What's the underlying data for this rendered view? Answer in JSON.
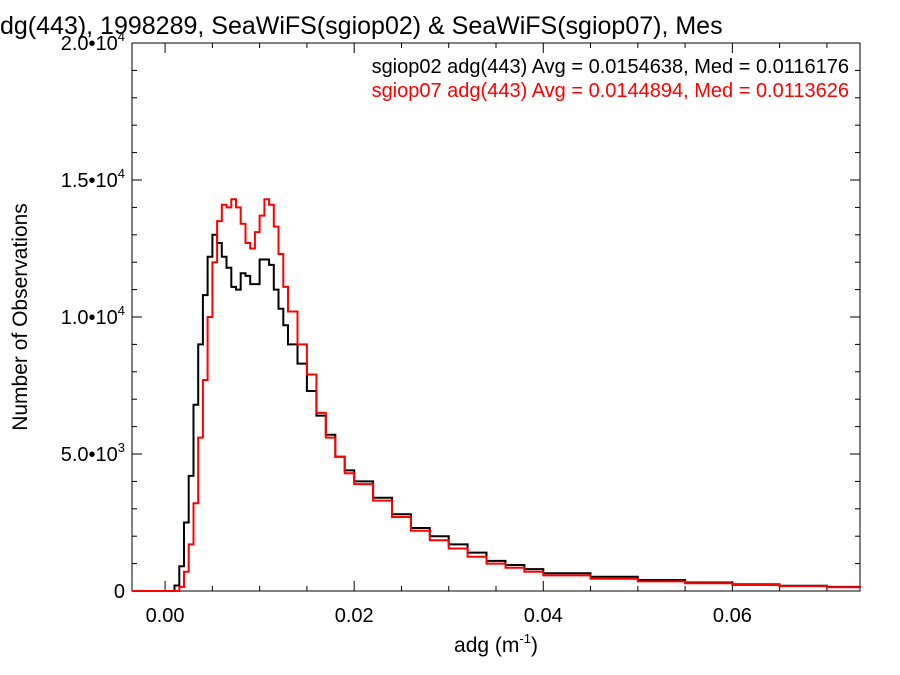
{
  "chart_data": {
    "type": "line",
    "title": "dg(443), 1998289, SeaWiFS(sgiop02) & SeaWiFS(sgiop07), Mes",
    "xlabel": "adg (m",
    "xlabel_sup": "-1",
    "xlabel_close": ")",
    "ylabel": "Number of Observations",
    "xlim": [
      -0.0035,
      0.0735
    ],
    "ylim": [
      0,
      20000
    ],
    "x_ticks": [
      {
        "value": 0.0,
        "label": "0.00"
      },
      {
        "value": 0.02,
        "label": "0.02"
      },
      {
        "value": 0.04,
        "label": "0.04"
      },
      {
        "value": 0.06,
        "label": "0.06"
      }
    ],
    "y_ticks": [
      {
        "value": 0,
        "label": "0",
        "sup": ""
      },
      {
        "value": 5000,
        "label": "5.0•10",
        "sup": "3"
      },
      {
        "value": 10000,
        "label": "1.0•10",
        "sup": "4"
      },
      {
        "value": 15000,
        "label": "1.5•10",
        "sup": "4"
      },
      {
        "value": 20000,
        "label": "2.0•10",
        "sup": "4"
      }
    ],
    "legend_position": "top-right",
    "series": [
      {
        "name": "sgiop02 adg(443) Avg = 0.0154638, Med = 0.0116176",
        "color": "#000000",
        "x": [
          -0.0035,
          0.0005,
          0.001,
          0.0015,
          0.002,
          0.0025,
          0.003,
          0.0035,
          0.004,
          0.0045,
          0.005,
          0.0055,
          0.006,
          0.0065,
          0.007,
          0.0075,
          0.008,
          0.0085,
          0.009,
          0.0095,
          0.01,
          0.0105,
          0.011,
          0.0115,
          0.012,
          0.0125,
          0.013,
          0.014,
          0.015,
          0.016,
          0.017,
          0.018,
          0.019,
          0.02,
          0.022,
          0.024,
          0.026,
          0.028,
          0.03,
          0.032,
          0.034,
          0.036,
          0.038,
          0.04,
          0.045,
          0.05,
          0.055,
          0.06,
          0.065,
          0.07,
          0.0735
        ],
        "values": [
          0,
          0,
          200,
          900,
          2500,
          4200,
          6800,
          9000,
          10800,
          12200,
          13000,
          12700,
          12200,
          11800,
          11100,
          11000,
          11600,
          11500,
          11200,
          11200,
          12100,
          12100,
          11900,
          11000,
          10300,
          9700,
          9000,
          8300,
          7300,
          6400,
          5700,
          4900,
          4400,
          4000,
          3400,
          2800,
          2300,
          2000,
          1700,
          1400,
          1100,
          950,
          800,
          650,
          520,
          400,
          310,
          240,
          190,
          150,
          120
        ]
      },
      {
        "name": "sgiop07 adg(443) Avg = 0.0144894, Med = 0.0113626",
        "color": "#ff0000",
        "x": [
          -0.0035,
          0.001,
          0.0015,
          0.002,
          0.0025,
          0.003,
          0.0035,
          0.004,
          0.0045,
          0.005,
          0.0055,
          0.006,
          0.0065,
          0.007,
          0.0075,
          0.008,
          0.0085,
          0.009,
          0.0095,
          0.01,
          0.0105,
          0.011,
          0.0115,
          0.012,
          0.0125,
          0.013,
          0.014,
          0.015,
          0.016,
          0.017,
          0.018,
          0.019,
          0.02,
          0.022,
          0.024,
          0.026,
          0.028,
          0.03,
          0.032,
          0.034,
          0.036,
          0.038,
          0.04,
          0.045,
          0.05,
          0.055,
          0.06,
          0.065,
          0.07,
          0.0735
        ],
        "values": [
          0,
          0,
          150,
          700,
          1700,
          3200,
          5600,
          7700,
          10000,
          12000,
          13500,
          14100,
          14000,
          14300,
          14000,
          13400,
          12700,
          12500,
          13100,
          13700,
          14300,
          14100,
          13300,
          12300,
          11100,
          10200,
          9000,
          7900,
          6500,
          5600,
          4900,
          4300,
          3900,
          3300,
          2700,
          2200,
          1850,
          1550,
          1250,
          1000,
          850,
          700,
          570,
          450,
          350,
          280,
          220,
          180,
          140,
          110
        ]
      }
    ]
  }
}
